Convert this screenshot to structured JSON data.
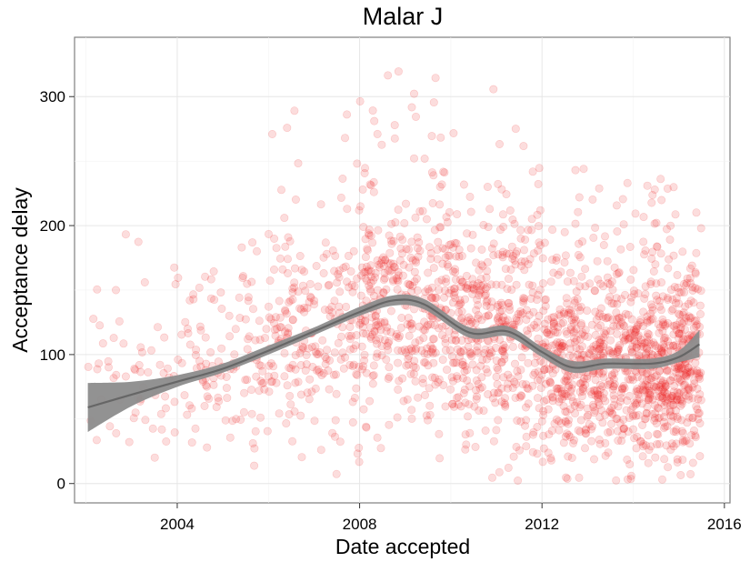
{
  "chart_data": {
    "type": "scatter",
    "title": "Malar J",
    "xlabel": "Date accepted",
    "ylabel": "Acceptance delay",
    "x_ticks": [
      "2004",
      "2008",
      "2012",
      "2016"
    ],
    "y_ticks": [
      "0",
      "100",
      "200",
      "300"
    ],
    "xlim": [
      "2001-10-01",
      "2016-02-15"
    ],
    "ylim": [
      -15,
      346
    ],
    "grid": true,
    "theme": "white background, light grey grid, grey border",
    "point_color": "#ee1c1c",
    "point_alpha": 0.15,
    "trend_color": "#666666",
    "n_points_note_visible": false,
    "series": [
      {
        "kind": "smooth-band",
        "points": [
          {
            "x": "2002-01-15",
            "y": 59,
            "lo": 40,
            "hi": 78
          },
          {
            "x": "2003-01-01",
            "y": 69,
            "lo": 60,
            "hi": 79
          },
          {
            "x": "2004-01-01",
            "y": 79,
            "lo": 75,
            "hi": 84
          },
          {
            "x": "2005-01-01",
            "y": 89,
            "lo": 86,
            "hi": 93
          },
          {
            "x": "2006-01-01",
            "y": 103,
            "lo": 100,
            "hi": 107
          },
          {
            "x": "2007-01-01",
            "y": 118,
            "lo": 115,
            "hi": 121
          },
          {
            "x": "2008-01-01",
            "y": 133,
            "lo": 130,
            "hi": 137
          },
          {
            "x": "2008-10-01",
            "y": 142,
            "lo": 138,
            "hi": 146
          },
          {
            "x": "2009-06-01",
            "y": 139,
            "lo": 135,
            "hi": 143
          },
          {
            "x": "2010-06-01",
            "y": 117,
            "lo": 113,
            "hi": 121
          },
          {
            "x": "2011-04-01",
            "y": 118,
            "lo": 114,
            "hi": 122
          },
          {
            "x": "2012-01-01",
            "y": 102,
            "lo": 98,
            "hi": 106
          },
          {
            "x": "2012-09-01",
            "y": 90,
            "lo": 86,
            "hi": 95
          },
          {
            "x": "2013-06-01",
            "y": 93,
            "lo": 89,
            "hi": 97
          },
          {
            "x": "2014-06-01",
            "y": 93,
            "lo": 89,
            "hi": 97
          },
          {
            "x": "2015-01-01",
            "y": 98,
            "lo": 94,
            "hi": 103
          },
          {
            "x": "2015-06-15",
            "y": 108,
            "lo": 98,
            "hi": 119
          }
        ]
      }
    ],
    "scatter_density": [
      {
        "from": "2002-01-01",
        "to": "2004-01-01",
        "count": 60,
        "center": 75,
        "spread": 40
      },
      {
        "from": "2004-01-01",
        "to": "2006-01-01",
        "count": 120,
        "center": 90,
        "spread": 45
      },
      {
        "from": "2006-01-01",
        "to": "2008-01-01",
        "count": 230,
        "center": 115,
        "spread": 55
      },
      {
        "from": "2008-01-01",
        "to": "2010-01-01",
        "count": 380,
        "center": 135,
        "spread": 60
      },
      {
        "from": "2010-01-01",
        "to": "2012-01-01",
        "count": 420,
        "center": 115,
        "spread": 60
      },
      {
        "from": "2012-01-01",
        "to": "2014-01-01",
        "count": 520,
        "center": 90,
        "spread": 50
      },
      {
        "from": "2014-01-01",
        "to": "2015-07-01",
        "count": 520,
        "center": 90,
        "spread": 50
      }
    ]
  }
}
